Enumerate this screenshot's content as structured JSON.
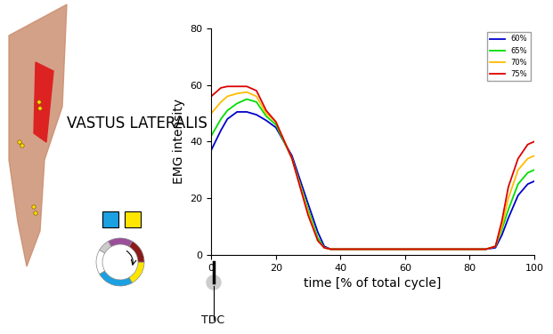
{
  "chart_data": {
    "type": "line",
    "title": "VASTUS LATERALIS",
    "x_label": "time [% of total cycle]",
    "y_label": "EMG intensity",
    "annotations": [
      "TDC"
    ],
    "x": [
      0,
      3,
      5,
      8,
      11,
      14,
      17,
      20,
      25,
      30,
      33,
      35,
      37,
      40,
      50,
      60,
      70,
      80,
      85,
      88,
      90,
      92,
      95,
      98,
      100
    ],
    "series": [
      {
        "name": "60%",
        "color": "#0000cc",
        "values": [
          37,
          44,
          48,
          50.5,
          50.5,
          49.5,
          47.5,
          45,
          35,
          18,
          8,
          3,
          2,
          2,
          2,
          2,
          2,
          2,
          2,
          2.5,
          7,
          13,
          21,
          25,
          26
        ]
      },
      {
        "name": "65%",
        "color": "#00dd00",
        "values": [
          42,
          48,
          51,
          53.5,
          55,
          54,
          49,
          46,
          34,
          16,
          6,
          2.5,
          2,
          2,
          2,
          2,
          2,
          2,
          2,
          3,
          9,
          16,
          25,
          29,
          30
        ]
      },
      {
        "name": "70%",
        "color": "#ffbb00",
        "values": [
          50,
          54,
          56,
          57,
          57.5,
          56,
          50,
          47,
          34,
          15,
          5,
          2.5,
          2,
          2,
          2,
          2,
          2,
          2,
          2,
          3,
          10,
          20,
          30,
          34,
          35
        ]
      },
      {
        "name": "75%",
        "color": "#dd0000",
        "values": [
          56,
          59,
          59.5,
          59.5,
          59.5,
          58,
          51,
          47,
          34,
          14,
          5,
          2.5,
          2,
          2,
          2,
          2,
          2,
          2,
          2,
          3,
          12,
          24,
          34,
          39,
          40
        ]
      }
    ],
    "xlim": [
      0,
      100
    ],
    "xticks": [
      0,
      20,
      40,
      60,
      80,
      100
    ],
    "ylim": [
      0,
      80
    ],
    "yticks": [
      0,
      20,
      40,
      60,
      80
    ],
    "grid": false,
    "legend": "upper right"
  }
}
